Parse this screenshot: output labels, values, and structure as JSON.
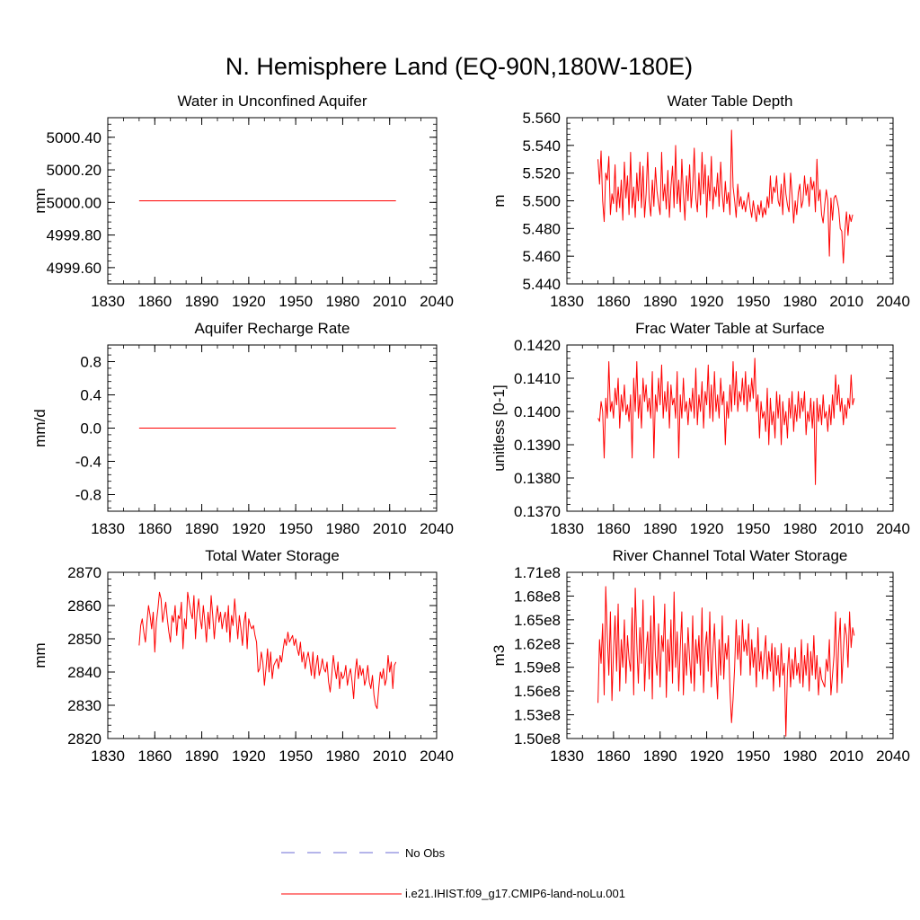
{
  "title": "N. Hemisphere Land (EQ-90N,180W-180E)",
  "colors": {
    "model": "#ff0000",
    "obs": "#6b6bd6",
    "axis": "#000000"
  },
  "legend": {
    "placement": "bottom-center",
    "obs_label": "No Obs",
    "model_label": "i.e21.IHIST.f09_g17.CMIP6-land-noLu.001"
  },
  "chart_data": [
    {
      "type": "line",
      "title": "Water in Unconfined Aquifer",
      "ylabel": "mm",
      "xlim": [
        1830,
        2040
      ],
      "ylim": [
        4999.5,
        5000.52
      ],
      "xticks": [
        1830,
        1860,
        1890,
        1920,
        1950,
        1980,
        2010,
        2040
      ],
      "xtick_labels": [
        "1830",
        "1860",
        "1890",
        "1920",
        "1950",
        "1980",
        "2010",
        "2040"
      ],
      "yticks": [
        4999.6,
        4999.8,
        5000.0,
        5000.2,
        5000.4
      ],
      "ytick_labels": [
        "4999.60",
        "4999.80",
        "5000.00",
        "5000.20",
        "5000.40"
      ],
      "series": [
        {
          "x": [
            1850,
            2014
          ],
          "y": [
            5000.01,
            5000.01
          ]
        }
      ]
    },
    {
      "type": "line",
      "title": "Water Table Depth",
      "ylabel": "m",
      "xlim": [
        1830,
        2040
      ],
      "ylim": [
        5.44,
        5.56
      ],
      "xticks": [
        1830,
        1860,
        1890,
        1920,
        1950,
        1980,
        2010,
        2040
      ],
      "xtick_labels": [
        "1830",
        "1860",
        "1890",
        "1920",
        "1950",
        "1980",
        "2010",
        "2040"
      ],
      "yticks": [
        5.44,
        5.46,
        5.48,
        5.5,
        5.52,
        5.54,
        5.56
      ],
      "ytick_labels": [
        "5.440",
        "5.460",
        "5.480",
        "5.500",
        "5.520",
        "5.540",
        "5.560"
      ],
      "series": [
        {
          "x_start": 1850,
          "x_step": 1,
          "y": [
            5.53,
            5.512,
            5.536,
            5.5,
            5.485,
            5.52,
            5.515,
            5.532,
            5.49,
            5.505,
            5.498,
            5.526,
            5.492,
            5.51,
            5.495,
            5.515,
            5.486,
            5.528,
            5.502,
            5.518,
            5.49,
            5.535,
            5.495,
            5.51,
            5.488,
            5.52,
            5.5,
            5.528,
            5.495,
            5.525,
            5.488,
            5.505,
            5.535,
            5.5,
            5.489,
            5.515,
            5.496,
            5.524,
            5.507,
            5.498,
            5.49,
            5.535,
            5.5,
            5.512,
            5.494,
            5.522,
            5.488,
            5.51,
            5.525,
            5.495,
            5.54,
            5.498,
            5.515,
            5.492,
            5.53,
            5.505,
            5.486,
            5.518,
            5.5,
            5.526,
            5.495,
            5.51,
            5.538,
            5.502,
            5.492,
            5.52,
            5.497,
            5.535,
            5.505,
            5.526,
            5.488,
            5.518,
            5.5,
            5.532,
            5.494,
            5.51,
            5.503,
            5.52,
            5.496,
            5.528,
            5.505,
            5.492,
            5.514,
            5.498,
            5.506,
            5.49,
            5.551,
            5.51,
            5.5,
            5.488,
            5.512,
            5.496,
            5.503,
            5.494,
            5.5,
            5.492,
            5.5,
            5.506,
            5.495,
            5.488,
            5.5,
            5.492,
            5.485,
            5.497,
            5.49,
            5.5,
            5.488,
            5.495,
            5.49,
            5.503,
            5.495,
            5.518,
            5.498,
            5.51,
            5.506,
            5.518,
            5.5,
            5.496,
            5.512,
            5.49,
            5.52,
            5.505,
            5.497,
            5.492,
            5.52,
            5.504,
            5.484,
            5.5,
            5.49,
            5.506,
            5.512,
            5.495,
            5.5,
            5.518,
            5.504,
            5.512,
            5.496,
            5.517,
            5.508,
            5.514,
            5.492,
            5.53,
            5.5,
            5.508,
            5.49,
            5.484,
            5.497,
            5.508,
            5.5,
            5.46,
            5.502,
            5.486,
            5.502,
            5.504,
            5.5,
            5.494,
            5.48,
            5.478,
            5.455,
            5.478,
            5.492,
            5.475,
            5.49,
            5.485,
            5.49
          ]
        }
      ]
    },
    {
      "type": "line",
      "title": "Aquifer Recharge Rate",
      "ylabel": "mm/d",
      "xlim": [
        1830,
        2040
      ],
      "ylim": [
        -1.0,
        1.0
      ],
      "xticks": [
        1830,
        1860,
        1890,
        1920,
        1950,
        1980,
        2010,
        2040
      ],
      "xtick_labels": [
        "1830",
        "1860",
        "1890",
        "1920",
        "1950",
        "1980",
        "2010",
        "2040"
      ],
      "yticks": [
        -0.8,
        -0.4,
        0.0,
        0.4,
        0.8
      ],
      "ytick_labels": [
        "-0.8",
        "-0.4",
        "0.0",
        "0.4",
        "0.8"
      ],
      "series": [
        {
          "x": [
            1850,
            2014
          ],
          "y": [
            0.0,
            0.0
          ]
        }
      ]
    },
    {
      "type": "line",
      "title": "Frac Water Table at Surface",
      "ylabel": "unitless [0-1]",
      "xlim": [
        1830,
        2040
      ],
      "ylim": [
        0.137,
        0.142
      ],
      "xticks": [
        1830,
        1860,
        1890,
        1920,
        1950,
        1980,
        2010,
        2040
      ],
      "xtick_labels": [
        "1830",
        "1860",
        "1890",
        "1920",
        "1950",
        "1980",
        "2010",
        "2040"
      ],
      "yticks": [
        0.137,
        0.138,
        0.139,
        0.14,
        0.141,
        0.142
      ],
      "ytick_labels": [
        "0.1370",
        "0.1380",
        "0.1390",
        "0.1400",
        "0.1410",
        "0.1420"
      ],
      "series": [
        {
          "x_start": 1850,
          "x_step": 1,
          "y": [
            0.1398,
            0.1397,
            0.1403,
            0.14,
            0.1386,
            0.1404,
            0.1398,
            0.1415,
            0.14,
            0.1403,
            0.1398,
            0.1407,
            0.1402,
            0.141,
            0.1395,
            0.1405,
            0.14,
            0.1408,
            0.1399,
            0.1402,
            0.1397,
            0.1405,
            0.1386,
            0.141,
            0.14,
            0.1415,
            0.1398,
            0.1405,
            0.1395,
            0.141,
            0.1403,
            0.1408,
            0.14,
            0.1404,
            0.1398,
            0.1412,
            0.1386,
            0.1405,
            0.14,
            0.141,
            0.1402,
            0.1414,
            0.1398,
            0.1406,
            0.14,
            0.1409,
            0.1395,
            0.1408,
            0.1402,
            0.1404,
            0.1398,
            0.1412,
            0.1386,
            0.1405,
            0.1398,
            0.141,
            0.14,
            0.1403,
            0.1396,
            0.1404,
            0.14,
            0.1407,
            0.1398,
            0.1413,
            0.1396,
            0.1405,
            0.14,
            0.1409,
            0.1395,
            0.1406,
            0.1402,
            0.1414,
            0.1398,
            0.1408,
            0.1397,
            0.1412,
            0.14,
            0.1405,
            0.1398,
            0.141,
            0.1402,
            0.1406,
            0.139,
            0.1403,
            0.1398,
            0.1408,
            0.14,
            0.1415,
            0.1402,
            0.1412,
            0.14,
            0.1406,
            0.1403,
            0.141,
            0.1402,
            0.1412,
            0.14,
            0.1408,
            0.1403,
            0.141,
            0.1404,
            0.1416,
            0.14,
            0.1405,
            0.1392,
            0.1403,
            0.1398,
            0.14,
            0.1394,
            0.1407,
            0.139,
            0.1404,
            0.1396,
            0.14,
            0.1392,
            0.1406,
            0.1398,
            0.1405,
            0.139,
            0.1403,
            0.1396,
            0.14,
            0.1392,
            0.1404,
            0.1398,
            0.1406,
            0.1394,
            0.1402,
            0.1397,
            0.1406,
            0.1398,
            0.1404,
            0.14,
            0.1406,
            0.1393,
            0.14,
            0.1397,
            0.1404,
            0.1395,
            0.1403,
            0.1378,
            0.1404,
            0.1397,
            0.1402,
            0.1396,
            0.1405,
            0.1398,
            0.14,
            0.1394,
            0.1402,
            0.1396,
            0.1405,
            0.1398,
            0.1411,
            0.1402,
            0.1408,
            0.14,
            0.1404,
            0.1396,
            0.1402,
            0.1398,
            0.1404,
            0.1401,
            0.1411,
            0.1402,
            0.1404
          ]
        }
      ]
    },
    {
      "type": "line",
      "title": "Total Water Storage",
      "ylabel": "mm",
      "xlim": [
        1830,
        2040
      ],
      "ylim": [
        2820,
        2870
      ],
      "xticks": [
        1830,
        1860,
        1890,
        1920,
        1950,
        1980,
        2010,
        2040
      ],
      "xtick_labels": [
        "1830",
        "1860",
        "1890",
        "1920",
        "1950",
        "1980",
        "2010",
        "2040"
      ],
      "yticks": [
        2820,
        2830,
        2840,
        2850,
        2860,
        2870
      ],
      "ytick_labels": [
        "2820",
        "2830",
        "2840",
        "2850",
        "2860",
        "2870"
      ],
      "series": [
        {
          "x_start": 1850,
          "x_step": 1,
          "y": [
            2848,
            2854,
            2856,
            2852,
            2849,
            2855,
            2860,
            2857,
            2853,
            2858,
            2846,
            2855,
            2859,
            2864,
            2862,
            2855,
            2858,
            2861,
            2856,
            2852,
            2849,
            2857,
            2855,
            2860,
            2851,
            2857,
            2856,
            2861,
            2847,
            2856,
            2853,
            2864,
            2861,
            2858,
            2856,
            2863,
            2850,
            2858,
            2862,
            2856,
            2853,
            2860,
            2855,
            2849,
            2858,
            2853,
            2863,
            2857,
            2850,
            2856,
            2860,
            2855,
            2858,
            2853,
            2856,
            2858,
            2852,
            2860,
            2849,
            2857,
            2854,
            2862,
            2856,
            2850,
            2857,
            2853,
            2848,
            2855,
            2858,
            2847,
            2856,
            2854,
            2853,
            2854,
            2851,
            2849,
            2840,
            2841,
            2846,
            2843,
            2836,
            2841,
            2847,
            2840,
            2846,
            2838,
            2842,
            2843,
            2844,
            2841,
            2845,
            2843,
            2847,
            2850,
            2848,
            2852,
            2849,
            2850,
            2851,
            2848,
            2850,
            2847,
            2845,
            2849,
            2843,
            2846,
            2841,
            2844,
            2846,
            2843,
            2839,
            2846,
            2838,
            2842,
            2845,
            2839,
            2841,
            2844,
            2841,
            2840,
            2843,
            2837,
            2834,
            2839,
            2845,
            2841,
            2838,
            2843,
            2835,
            2840,
            2838,
            2839,
            2842,
            2836,
            2839,
            2841,
            2837,
            2832,
            2840,
            2844,
            2838,
            2842,
            2839,
            2841,
            2836,
            2838,
            2842,
            2837,
            2835,
            2839,
            2833,
            2830,
            2829,
            2835,
            2840,
            2838,
            2841,
            2836,
            2838,
            2845,
            2840,
            2843,
            2835,
            2842,
            2843
          ]
        }
      ]
    },
    {
      "type": "line",
      "title": "River Channel Total Water Storage",
      "ylabel": "m3",
      "xlim": [
        1830,
        2040
      ],
      "ylim": [
        150000000,
        171000000
      ],
      "xticks": [
        1830,
        1860,
        1890,
        1920,
        1950,
        1980,
        2010,
        2040
      ],
      "xtick_labels": [
        "1830",
        "1860",
        "1890",
        "1920",
        "1950",
        "1980",
        "2010",
        "2040"
      ],
      "yticks": [
        150000000,
        153000000,
        156000000,
        159000000,
        162000000,
        165000000,
        168000000,
        171000000
      ],
      "ytick_labels": [
        "1.50e8",
        "1.53e8",
        "1.56e8",
        "1.59e8",
        "1.62e8",
        "1.65e8",
        "1.68e8",
        "1.71e8"
      ],
      "series": [
        {
          "x_start": 1850,
          "x_step": 1,
          "y": [
            154500000,
            162500000,
            159500000,
            164500000,
            155500000,
            169200000,
            163000000,
            158000000,
            166000000,
            154800000,
            161000000,
            165500000,
            158500000,
            167000000,
            156000000,
            162500000,
            159000000,
            165000000,
            157000000,
            163000000,
            160000000,
            158500000,
            166500000,
            155500000,
            169000000,
            162000000,
            157000000,
            164000000,
            159500000,
            167500000,
            156000000,
            161000000,
            163500000,
            157500000,
            165500000,
            155000000,
            168000000,
            160500000,
            158000000,
            164500000,
            156500000,
            163000000,
            161000000,
            167000000,
            155200000,
            162500000,
            158500000,
            165000000,
            157000000,
            168500000,
            159000000,
            163500000,
            156000000,
            161500000,
            166000000,
            155500000,
            162000000,
            158000000,
            164000000,
            160000000,
            157000000,
            165500000,
            156000000,
            162500000,
            159500000,
            163000000,
            158000000,
            166500000,
            155800000,
            161500000,
            163500000,
            158500000,
            166000000,
            156500000,
            161000000,
            164500000,
            159000000,
            155000000,
            162500000,
            158000000,
            165500000,
            157500000,
            162000000,
            160000000,
            163000000,
            156000000,
            152000000,
            155000000,
            159000000,
            165000000,
            160000000,
            163000000,
            158000000,
            165000000,
            161000000,
            162500000,
            160500000,
            164500000,
            158000000,
            162500000,
            159000000,
            161500000,
            156500000,
            164000000,
            158500000,
            161000000,
            157500000,
            160500000,
            163000000,
            157500000,
            161000000,
            158500000,
            162000000,
            156000000,
            161500000,
            158000000,
            160500000,
            156500000,
            162000000,
            158000000,
            159500000,
            150300000,
            158500000,
            161500000,
            156500000,
            160000000,
            157500000,
            161500000,
            158000000,
            159500000,
            157000000,
            162500000,
            156500000,
            160500000,
            158000000,
            162000000,
            156000000,
            161000000,
            158000000,
            163000000,
            157500000,
            160500000,
            155500000,
            159000000,
            157500000,
            157000000,
            156500000,
            160000000,
            158500000,
            162500000,
            155500000,
            158000000,
            160500000,
            166000000,
            155800000,
            162000000,
            165200000,
            157000000,
            161000000,
            164500000,
            163000000,
            159000000,
            166000000,
            161500000,
            164000000,
            163000000
          ]
        }
      ]
    }
  ]
}
